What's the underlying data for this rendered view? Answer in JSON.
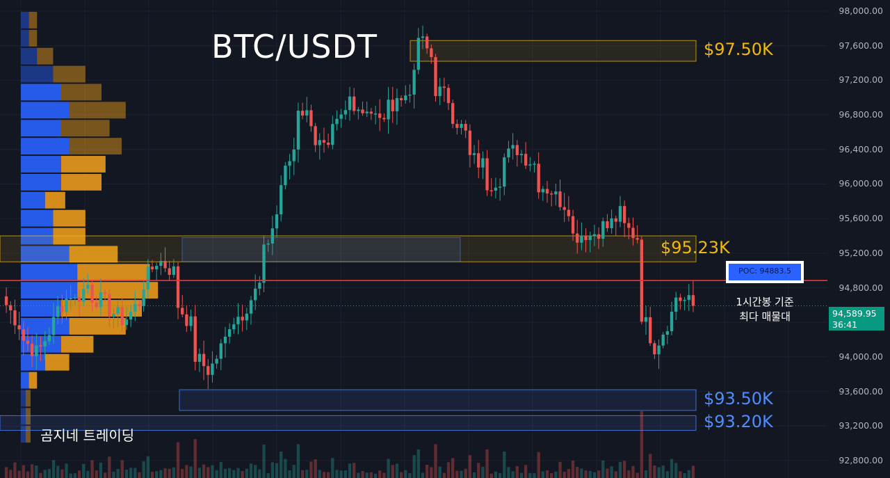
{
  "chart_data": {
    "type": "candlestick",
    "title": "BTC/USDT",
    "timeframe": "1h",
    "ylim": [
      92800,
      98000
    ],
    "y_ticks": [
      {
        "value": 98000,
        "label": "98,000.00"
      },
      {
        "value": 97600,
        "label": "97,600.00"
      },
      {
        "value": 97200,
        "label": "97,200.00"
      },
      {
        "value": 96800,
        "label": "96,800.00"
      },
      {
        "value": 96400,
        "label": "96,400.00"
      },
      {
        "value": 96000,
        "label": "96,000.00"
      },
      {
        "value": 95600,
        "label": "95,600.00"
      },
      {
        "value": 95200,
        "label": "95,200.00"
      },
      {
        "value": 94800,
        "label": "94,800.00"
      },
      {
        "value": 94400,
        "label": "94,400.00"
      },
      {
        "value": 94000,
        "label": "94,000.00"
      },
      {
        "value": 93600,
        "label": "93,600.00"
      },
      {
        "value": 93200,
        "label": "93,200.00"
      },
      {
        "value": 92800,
        "label": "92,800.00"
      }
    ],
    "price_anchors": [
      [
        94700,
        94600
      ],
      [
        94300,
        94200
      ],
      [
        94000,
        94100
      ],
      [
        94500,
        94550
      ],
      [
        94800,
        94650
      ],
      [
        94900,
        94700
      ],
      [
        94600,
        94550
      ],
      [
        94400,
        94450
      ],
      [
        94700,
        94850
      ],
      [
        95200,
        95100
      ],
      [
        94950,
        94600
      ],
      [
        94300,
        94000
      ],
      [
        93800,
        93900
      ],
      [
        94300,
        94400
      ],
      [
        94550,
        94600
      ],
      [
        94900,
        95200
      ],
      [
        95800,
        96000
      ],
      [
        96550,
        96900
      ],
      [
        96700,
        96500
      ],
      [
        96300,
        96600
      ],
      [
        96900,
        97000
      ],
      [
        96800,
        96900
      ],
      [
        96650,
        96800
      ],
      [
        97100,
        96950
      ],
      [
        97300,
        97700
      ],
      [
        97400,
        97100
      ],
      [
        96950,
        96800
      ],
      [
        96500,
        96300
      ],
      [
        96200,
        96000
      ],
      [
        96100,
        96300
      ],
      [
        96450,
        96350
      ],
      [
        96200,
        96000
      ],
      [
        95900,
        95850
      ],
      [
        95700,
        95400
      ],
      [
        95450,
        95400
      ],
      [
        95550,
        95500
      ],
      [
        95700,
        95500
      ],
      [
        95350,
        94500
      ],
      [
        94000,
        94200
      ],
      [
        94600,
        94700
      ],
      [
        94600,
        94590
      ]
    ],
    "last_price": "94,589.95",
    "countdown": "36:41",
    "poc_line": 94883.5,
    "volume_profile": {
      "price_range": [
        93000,
        98000
      ],
      "rows_top_to_bottom": [
        [
          1.0,
          1.0
        ],
        [
          1.0,
          1.0
        ],
        [
          2.0,
          2.0
        ],
        [
          4.0,
          4.0
        ],
        [
          5.0,
          5.0
        ],
        [
          6.0,
          7.0
        ],
        [
          5.0,
          6.0
        ],
        [
          6.0,
          6.5
        ],
        [
          5.0,
          5.5
        ],
        [
          5.0,
          5.0
        ],
        [
          3.0,
          2.5
        ],
        [
          4.0,
          4.0
        ],
        [
          4.0,
          4.0
        ],
        [
          6.0,
          6.0
        ],
        [
          7.0,
          9.0
        ],
        [
          7.0,
          10.0
        ],
        [
          5.0,
          10.0
        ],
        [
          6.0,
          7.0
        ],
        [
          5.0,
          4.0
        ],
        [
          3.0,
          3.0
        ],
        [
          1.0,
          1.0
        ],
        [
          0.6,
          0.6
        ],
        [
          0.6,
          0.6
        ],
        [
          0.6,
          0.6
        ]
      ]
    },
    "zones": [
      {
        "label": "$97.50K",
        "from": 97420,
        "to": 97660,
        "color": "#f0b90b"
      },
      {
        "label": "$95.23K",
        "from": 95100,
        "to": 95400,
        "color": "#f0b90b"
      },
      {
        "label": "$93.50K",
        "from": 93380,
        "to": 93620,
        "color": "#4f8cff"
      },
      {
        "label": "$93.20K",
        "from": 93150,
        "to": 93320,
        "color": "#4f8cff"
      }
    ]
  },
  "labels": {
    "title": "BTC/USDT",
    "poc_box": "POC: 94883.5",
    "note_line1": "1시간봉 기준",
    "note_line2": "최다 매물대",
    "watermark": "곰지네 트레이딩",
    "last_price": "94,589.95",
    "countdown": "36:41"
  }
}
